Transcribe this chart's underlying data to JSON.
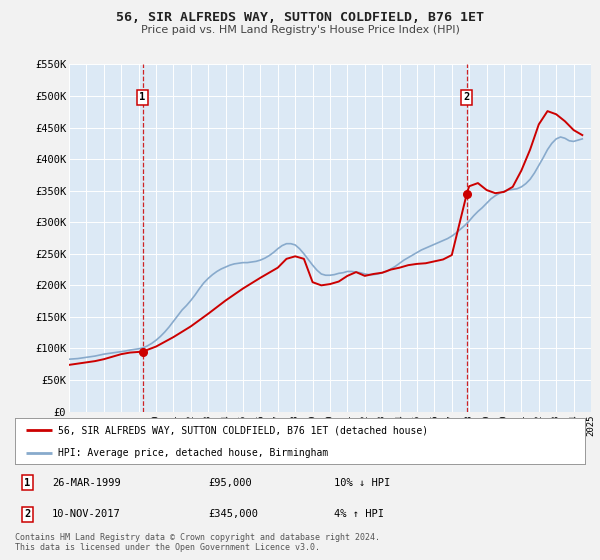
{
  "title": "56, SIR ALFREDS WAY, SUTTON COLDFIELD, B76 1ET",
  "subtitle": "Price paid vs. HM Land Registry's House Price Index (HPI)",
  "legend_label_red": "56, SIR ALFREDS WAY, SUTTON COLDFIELD, B76 1ET (detached house)",
  "legend_label_blue": "HPI: Average price, detached house, Birmingham",
  "annotation1_date": "26-MAR-1999",
  "annotation1_price": "£95,000",
  "annotation1_hpi": "10% ↓ HPI",
  "annotation2_date": "10-NOV-2017",
  "annotation2_price": "£345,000",
  "annotation2_hpi": "4% ↑ HPI",
  "footnote1": "Contains HM Land Registry data © Crown copyright and database right 2024.",
  "footnote2": "This data is licensed under the Open Government Licence v3.0.",
  "year_start": 1995,
  "year_end": 2025,
  "ylim_max": 550000,
  "yticks": [
    0,
    50000,
    100000,
    150000,
    200000,
    250000,
    300000,
    350000,
    400000,
    450000,
    500000,
    550000
  ],
  "ytick_labels": [
    "£0",
    "£50K",
    "£100K",
    "£150K",
    "£200K",
    "£250K",
    "£300K",
    "£350K",
    "£400K",
    "£450K",
    "£500K",
    "£550K"
  ],
  "plot_bg_color": "#dce9f5",
  "fig_bg_color": "#f2f2f2",
  "red_color": "#cc0000",
  "blue_color": "#88aacc",
  "vline_color": "#cc0000",
  "grid_color": "#ffffff",
  "marker1_year": 1999.23,
  "marker1_value": 95000,
  "marker2_year": 2017.86,
  "marker2_value": 345000,
  "hpi_x": [
    1995.0,
    1995.25,
    1995.5,
    1995.75,
    1996.0,
    1996.25,
    1996.5,
    1996.75,
    1997.0,
    1997.25,
    1997.5,
    1997.75,
    1998.0,
    1998.25,
    1998.5,
    1998.75,
    1999.0,
    1999.25,
    1999.5,
    1999.75,
    2000.0,
    2000.25,
    2000.5,
    2000.75,
    2001.0,
    2001.25,
    2001.5,
    2001.75,
    2002.0,
    2002.25,
    2002.5,
    2002.75,
    2003.0,
    2003.25,
    2003.5,
    2003.75,
    2004.0,
    2004.25,
    2004.5,
    2004.75,
    2005.0,
    2005.25,
    2005.5,
    2005.75,
    2006.0,
    2006.25,
    2006.5,
    2006.75,
    2007.0,
    2007.25,
    2007.5,
    2007.75,
    2008.0,
    2008.25,
    2008.5,
    2008.75,
    2009.0,
    2009.25,
    2009.5,
    2009.75,
    2010.0,
    2010.25,
    2010.5,
    2010.75,
    2011.0,
    2011.25,
    2011.5,
    2011.75,
    2012.0,
    2012.25,
    2012.5,
    2012.75,
    2013.0,
    2013.25,
    2013.5,
    2013.75,
    2014.0,
    2014.25,
    2014.5,
    2014.75,
    2015.0,
    2015.25,
    2015.5,
    2015.75,
    2016.0,
    2016.25,
    2016.5,
    2016.75,
    2017.0,
    2017.25,
    2017.5,
    2017.75,
    2018.0,
    2018.25,
    2018.5,
    2018.75,
    2019.0,
    2019.25,
    2019.5,
    2019.75,
    2020.0,
    2020.25,
    2020.5,
    2020.75,
    2021.0,
    2021.25,
    2021.5,
    2021.75,
    2022.0,
    2022.25,
    2022.5,
    2022.75,
    2023.0,
    2023.25,
    2023.5,
    2023.75,
    2024.0,
    2024.25,
    2024.5
  ],
  "hpi_y": [
    83000,
    83500,
    84000,
    85000,
    86000,
    87000,
    88000,
    89500,
    91000,
    92000,
    93000,
    94000,
    95000,
    96000,
    97500,
    98500,
    99500,
    101000,
    104000,
    108000,
    113000,
    119000,
    126000,
    134000,
    143000,
    152000,
    161000,
    168000,
    176000,
    185000,
    195000,
    204000,
    211000,
    217000,
    222000,
    226000,
    229000,
    232000,
    234000,
    235000,
    236000,
    236000,
    237000,
    238000,
    240000,
    243000,
    247000,
    252000,
    258000,
    263000,
    266000,
    266000,
    264000,
    258000,
    250000,
    241000,
    232000,
    224000,
    218000,
    216000,
    216000,
    217000,
    219000,
    220000,
    222000,
    222000,
    221000,
    220000,
    218000,
    217000,
    217000,
    218000,
    220000,
    222000,
    226000,
    230000,
    235000,
    240000,
    244000,
    248000,
    252000,
    256000,
    259000,
    262000,
    265000,
    268000,
    271000,
    274000,
    278000,
    283000,
    289000,
    295000,
    302000,
    310000,
    317000,
    323000,
    330000,
    337000,
    342000,
    346000,
    349000,
    351000,
    352000,
    353000,
    356000,
    361000,
    368000,
    378000,
    390000,
    402000,
    415000,
    425000,
    432000,
    435000,
    433000,
    429000,
    428000,
    430000,
    432000
  ],
  "price_x": [
    1995.0,
    1995.5,
    1996.0,
    1996.5,
    1997.0,
    1997.5,
    1998.0,
    1998.5,
    1999.23,
    2000.0,
    2001.0,
    2002.0,
    2003.0,
    2004.0,
    2005.0,
    2006.0,
    2007.0,
    2007.5,
    2008.0,
    2008.5,
    2009.0,
    2009.5,
    2010.0,
    2010.5,
    2011.0,
    2011.5,
    2012.0,
    2012.5,
    2013.0,
    2013.5,
    2014.0,
    2014.5,
    2015.0,
    2015.5,
    2016.0,
    2016.5,
    2017.0,
    2017.86,
    2018.0,
    2018.5,
    2019.0,
    2019.5,
    2020.0,
    2020.5,
    2021.0,
    2021.5,
    2022.0,
    2022.5,
    2023.0,
    2023.5,
    2024.0,
    2024.5
  ],
  "price_y": [
    74000,
    76000,
    78000,
    80000,
    83000,
    87000,
    91000,
    93500,
    95000,
    103000,
    118000,
    135000,
    155000,
    176000,
    195000,
    212000,
    228000,
    242000,
    246000,
    242000,
    205000,
    200000,
    202000,
    206000,
    215000,
    221000,
    215000,
    218000,
    220000,
    225000,
    228000,
    232000,
    234000,
    235000,
    238000,
    241000,
    248000,
    345000,
    357000,
    362000,
    351000,
    346000,
    348000,
    356000,
    382000,
    415000,
    455000,
    476000,
    471000,
    460000,
    446000,
    438000
  ]
}
